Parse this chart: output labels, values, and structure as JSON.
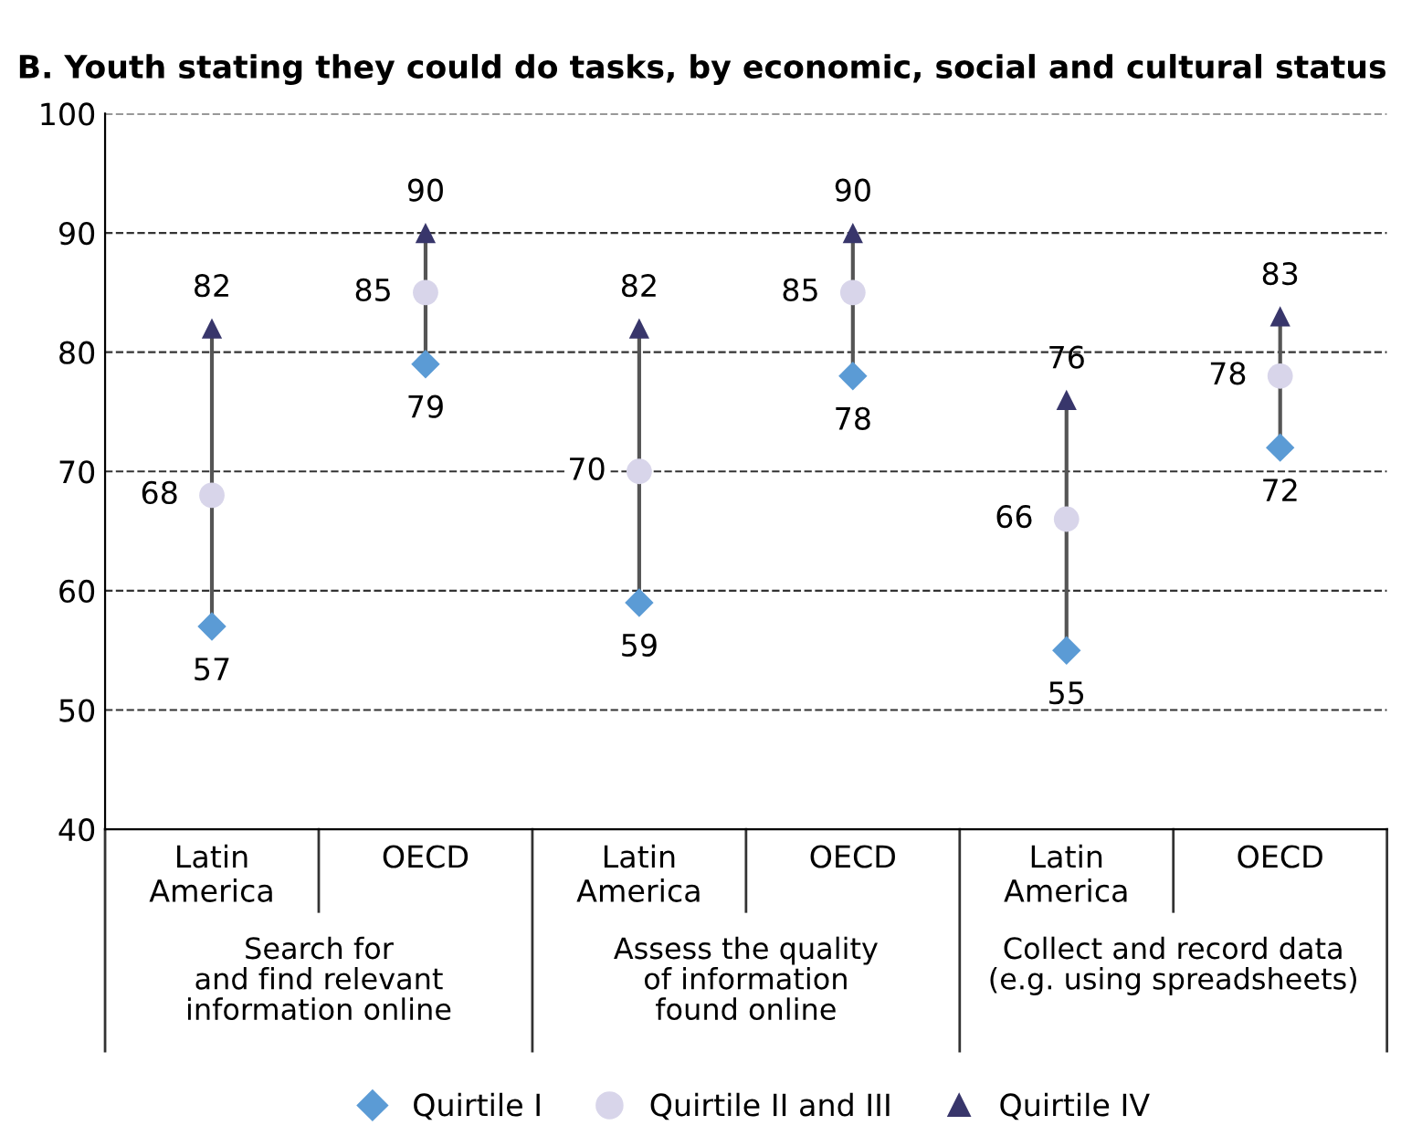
{
  "chart_data": {
    "type": "scatter",
    "title": "B. Youth stating they could do tasks, by economic, social and cultural status",
    "categories": [
      "Latin\nAmerica",
      "OECD",
      "Latin\nAmerica",
      "OECD",
      "Latin\nAmerica",
      "OECD"
    ],
    "series": [
      {
        "name": "Quirtile I",
        "color": "#5b9bd5",
        "marker": "diamond",
        "values": [
          57,
          79,
          59,
          78,
          55,
          72
        ]
      },
      {
        "name": "Quirtile II and III",
        "color": "#d8d5ea",
        "marker": "circle",
        "values": [
          68,
          85,
          70,
          85,
          66,
          78
        ]
      },
      {
        "name": "Quirtile IV",
        "color": "#38366b",
        "marker": "triangle",
        "values": [
          82,
          90,
          82,
          90,
          76,
          83
        ]
      }
    ],
    "annotations": [
      "Search for\nand find relevant\ninformation online",
      "Assess the quality\nof information\nfound online",
      "Collect and record data\n(e.g. using spreadsheets)"
    ],
    "ylim": [
      40,
      100
    ],
    "yticks": [
      40,
      50,
      60,
      70,
      80,
      90,
      100
    ],
    "grid": "y",
    "legend": "bottom",
    "data_labels": true
  }
}
